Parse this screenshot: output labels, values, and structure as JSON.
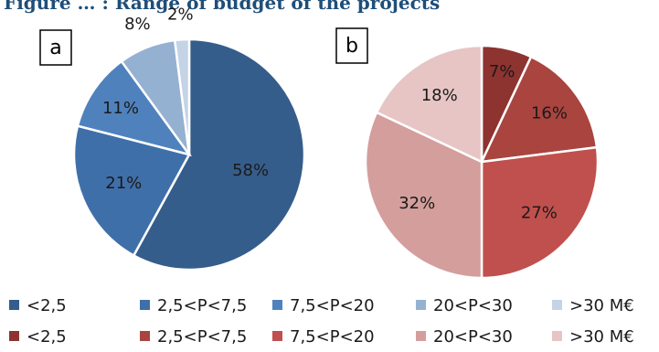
{
  "figure": {
    "title": "Figure … : Range of budget of the projects"
  },
  "chart_data": [
    {
      "type": "pie",
      "panel_label": "a",
      "categories": [
        "<2,5",
        "2,5<P<7,5",
        "7,5<P<20",
        "20<P<30",
        ">30 M€"
      ],
      "values": [
        58,
        21,
        11,
        8,
        2
      ],
      "value_labels": [
        "58%",
        "21%",
        "11%",
        "8%",
        "2%"
      ],
      "colors": [
        "#355d8c",
        "#3f6fa9",
        "#4f82bd",
        "#95b1d1",
        "#c4d3e6"
      ],
      "legend_colors": [
        "#355d8c",
        "#3f6fa9",
        "#4f82bd",
        "#95b1d1",
        "#c4d3e6"
      ],
      "legend_placement": "bottom"
    },
    {
      "type": "pie",
      "panel_label": "b",
      "categories": [
        "<2,5",
        "2,5<P<7,5",
        "7,5<P<20",
        "20<P<30",
        ">30 M€"
      ],
      "values": [
        7,
        16,
        27,
        32,
        18
      ],
      "value_labels": [
        "7%",
        "16%",
        "27%",
        "32%",
        "18%"
      ],
      "colors": [
        "#8d3330",
        "#a9443f",
        "#c0504d",
        "#d39e9c",
        "#e6c5c4"
      ],
      "legend_colors": [
        "#8d3330",
        "#a9443f",
        "#c0504d",
        "#d39e9c",
        "#e6c5c4"
      ],
      "legend_placement": "bottom"
    }
  ]
}
